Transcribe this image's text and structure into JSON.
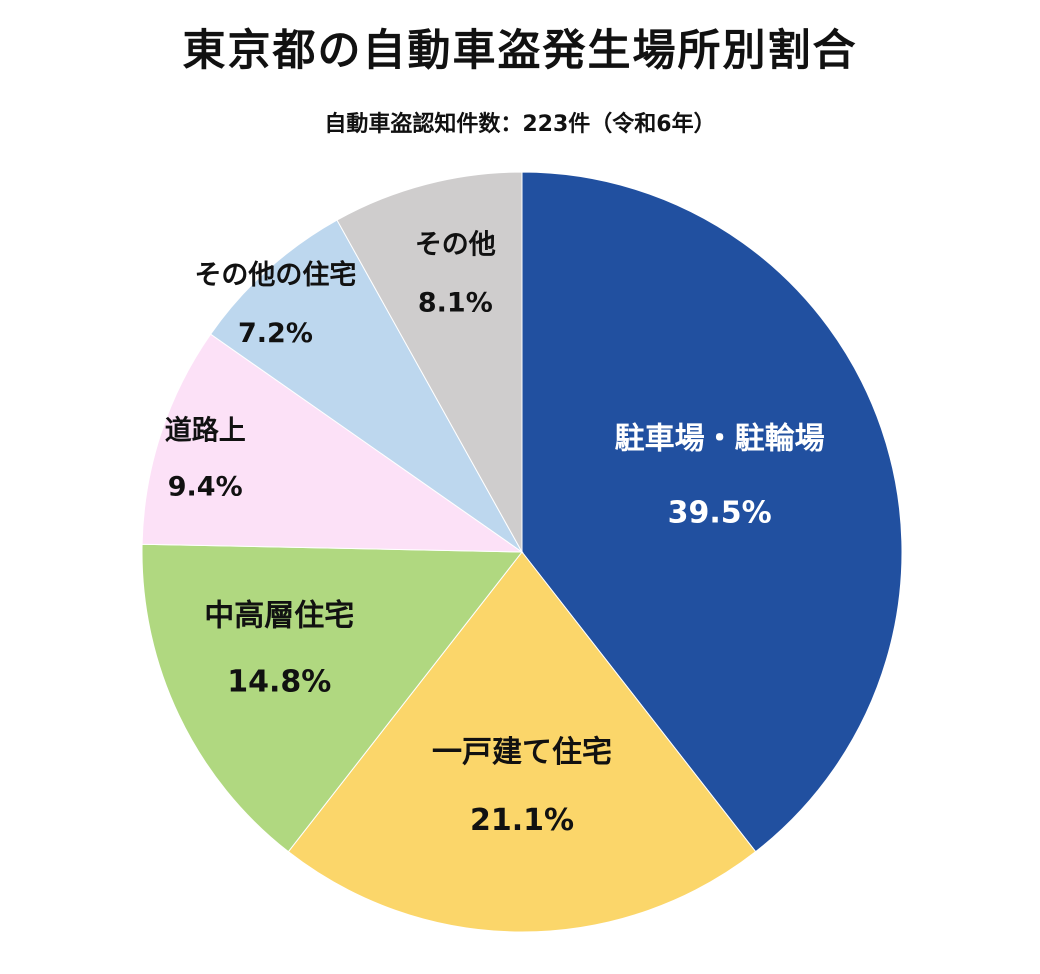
{
  "chart_data": {
    "type": "pie",
    "title": "東京都の自動車盗発生場所別割合",
    "subtitle": "自動車盗認知件数：223件（令和6年）",
    "slices": [
      {
        "label": "駐車場・駐輪場",
        "value": 39.5,
        "value_text": "39.5%",
        "color": "#2150A0",
        "text_color": "#ffffff"
      },
      {
        "label": "一戸建て住宅",
        "value": 21.1,
        "value_text": "21.1%",
        "color": "#FBD66A",
        "text_color": "#111111"
      },
      {
        "label": "中高層住宅",
        "value": 14.8,
        "value_text": "14.8%",
        "color": "#B0D880",
        "text_color": "#111111"
      },
      {
        "label": "道路上",
        "value": 9.4,
        "value_text": "9.4%",
        "color": "#FCE1F7",
        "text_color": "#111111"
      },
      {
        "label": "その他の住宅",
        "value": 7.2,
        "value_text": "7.2%",
        "color": "#BDD7EE",
        "text_color": "#111111"
      },
      {
        "label": "その他",
        "value": 8.1,
        "value_text": "8.1%",
        "color": "#CFCDCD",
        "text_color": "#111111"
      }
    ]
  }
}
